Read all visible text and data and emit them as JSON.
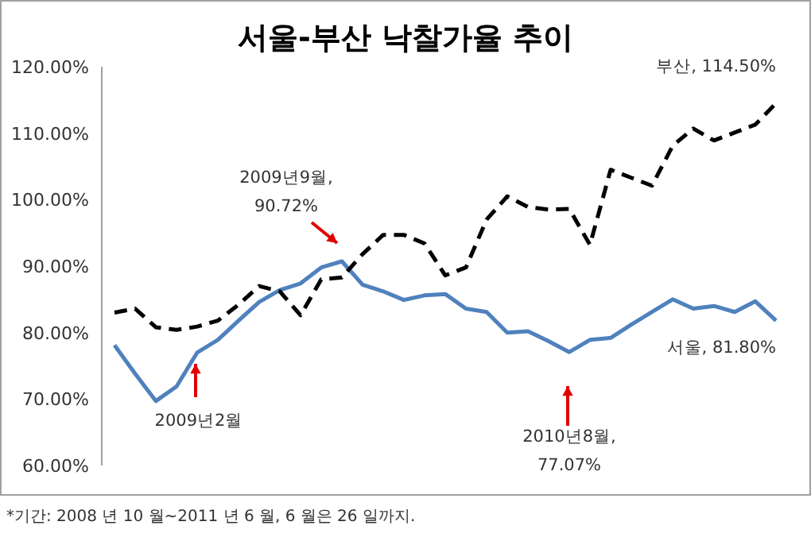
{
  "chart_data": {
    "type": "line",
    "title": "서울-부산 낙찰가율 추이",
    "categories": [
      null,
      null,
      null,
      null,
      null,
      null,
      null,
      null,
      null,
      null,
      null,
      null,
      null,
      null,
      null,
      null,
      null,
      null,
      null,
      null,
      null,
      null,
      null,
      null,
      null,
      null,
      null,
      null,
      null,
      null,
      null,
      null,
      null
    ],
    "series": [
      {
        "color": "#4f81bd",
        "line_style": "solid",
        "values": [
          78.1,
          73.8,
          69.7,
          71.9,
          77.0,
          78.9,
          81.8,
          84.6,
          86.4,
          87.4,
          89.8,
          90.72,
          87.2,
          86.2,
          84.9,
          85.6,
          85.8,
          83.6,
          83.1,
          80.0,
          80.2,
          78.7,
          77.07,
          78.9,
          79.2,
          81.2,
          83.1,
          85.0,
          83.6,
          84.0,
          83.1,
          84.7,
          81.8
        ]
      },
      {
        "color": "#000000",
        "line_style": "dashed",
        "values": [
          83.0,
          83.6,
          80.8,
          80.4,
          80.9,
          81.8,
          84.2,
          87.0,
          86.2,
          82.6,
          88.0,
          88.3,
          91.8,
          94.7,
          94.7,
          93.4,
          88.6,
          89.8,
          97.0,
          100.5,
          98.9,
          98.5,
          98.6,
          93.2,
          104.5,
          103.3,
          102.1,
          108.1,
          110.7,
          108.9,
          110.1,
          111.3,
          114.5
        ]
      }
    ],
    "ylim": [
      60,
      120
    ],
    "yticks": [
      {
        "value": 60,
        "label": "60.00%"
      },
      {
        "value": 70,
        "label": "70.00%"
      },
      {
        "value": 80,
        "label": "80.00%"
      },
      {
        "value": 90,
        "label": "90.00%"
      },
      {
        "value": 100,
        "label": "100.00%"
      },
      {
        "value": 110,
        "label": "110.00%"
      },
      {
        "value": 120,
        "label": "120.00%"
      }
    ],
    "grid": false,
    "marker": "none",
    "annotations": [
      "2009년2월",
      "2009년9월, 90.72%",
      "2010년8월, 77.07%",
      "부산, 114.50%",
      "서울, 81.80%",
      "*기간: 2008 년 10 월~2011 년 6 월, 6 월은 26 일까지."
    ]
  }
}
